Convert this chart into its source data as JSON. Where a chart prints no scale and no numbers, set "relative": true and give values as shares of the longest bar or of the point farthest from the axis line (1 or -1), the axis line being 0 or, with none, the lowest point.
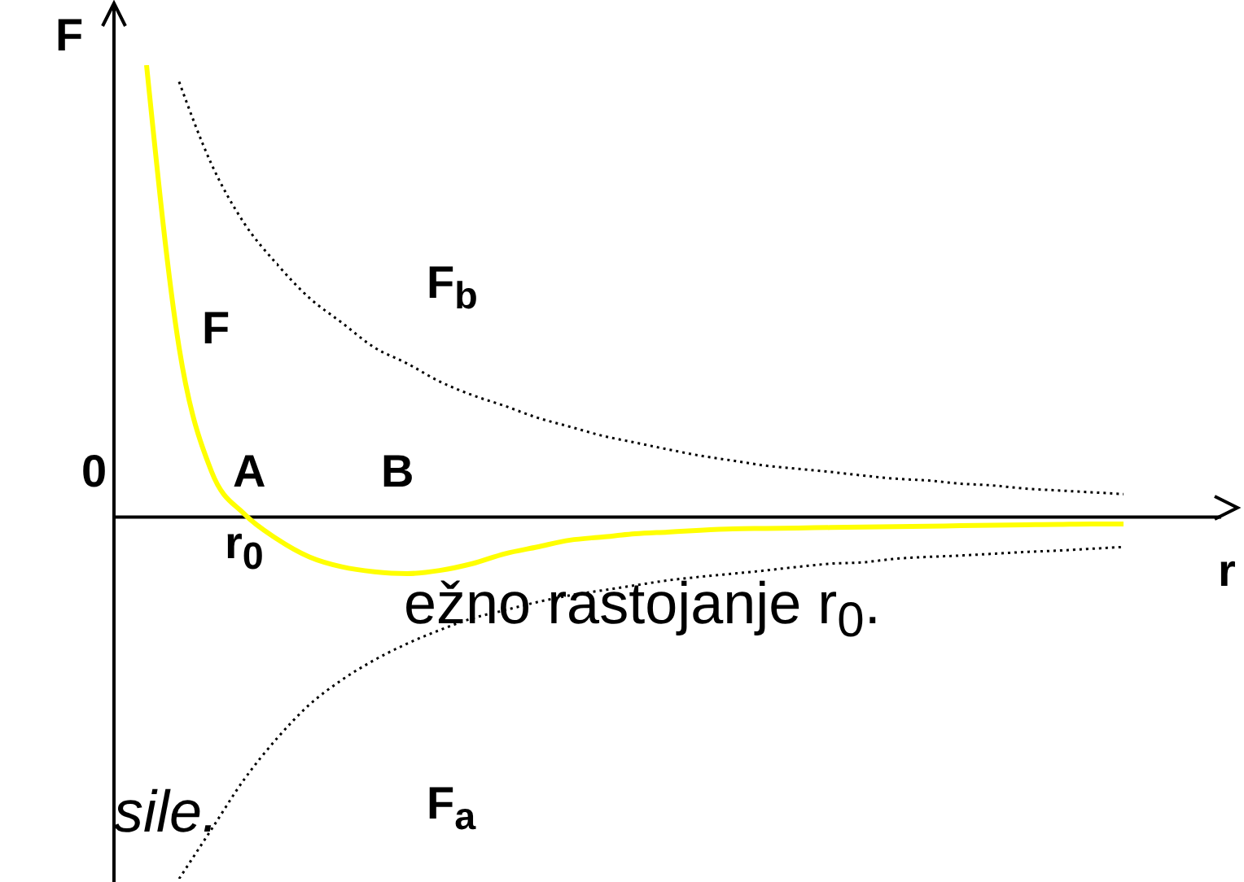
{
  "chart_data": {
    "type": "line",
    "relative": true,
    "ylabel": "F",
    "xlabel": "r",
    "marker": "none",
    "categories": [
      null,
      null,
      null,
      null,
      null,
      null,
      null,
      null,
      null,
      null,
      null,
      null,
      null,
      null,
      null,
      null,
      null,
      null,
      null,
      null,
      null,
      null,
      null,
      null,
      null,
      null,
      null,
      null,
      null,
      null,
      null
    ],
    "series": [
      {
        "name": "F",
        "color": "#ffff00",
        "line_style": "solid",
        "values": [
          1.0,
          0.375,
          0.1,
          0.007,
          -0.048,
          -0.088,
          -0.11,
          -0.121,
          -0.125,
          -0.118,
          -0.103,
          -0.081,
          -0.066,
          -0.051,
          -0.044,
          -0.037,
          -0.033,
          -0.029,
          -0.026,
          -0.025,
          -0.024,
          -0.023,
          -0.022,
          -0.021,
          -0.02,
          -0.019,
          -0.018,
          -0.017,
          -0.016,
          -0.015,
          -0.015
        ]
      },
      {
        "name": "F$_{b}$",
        "color": "#000000",
        "line_style": "dotted",
        "values": [
          null,
          0.963,
          0.78,
          0.65,
          0.56,
          0.485,
          0.43,
          0.375,
          0.34,
          0.3,
          0.27,
          0.246,
          0.22,
          0.2,
          0.18,
          0.165,
          0.15,
          0.136,
          0.125,
          0.114,
          0.107,
          0.1,
          0.092,
          0.085,
          0.081,
          0.074,
          0.07,
          0.063,
          0.059,
          0.055,
          0.051
        ]
      },
      {
        "name": "F$_{a}$",
        "color": "#000000",
        "line_style": "dotted",
        "values": [
          null,
          -0.8,
          -0.69,
          -0.58,
          -0.49,
          -0.415,
          -0.36,
          -0.316,
          -0.28,
          -0.25,
          -0.224,
          -0.206,
          -0.188,
          -0.173,
          -0.162,
          -0.151,
          -0.14,
          -0.132,
          -0.125,
          -0.118,
          -0.11,
          -0.103,
          -0.1,
          -0.092,
          -0.088,
          -0.085,
          -0.081,
          -0.077,
          -0.074,
          -0.07,
          -0.066
        ]
      }
    ],
    "annotations": [
      "0",
      "A",
      "B",
      "r$_{0}$",
      "ežno rastojanje r$_{0}$.",
      "sile."
    ]
  }
}
